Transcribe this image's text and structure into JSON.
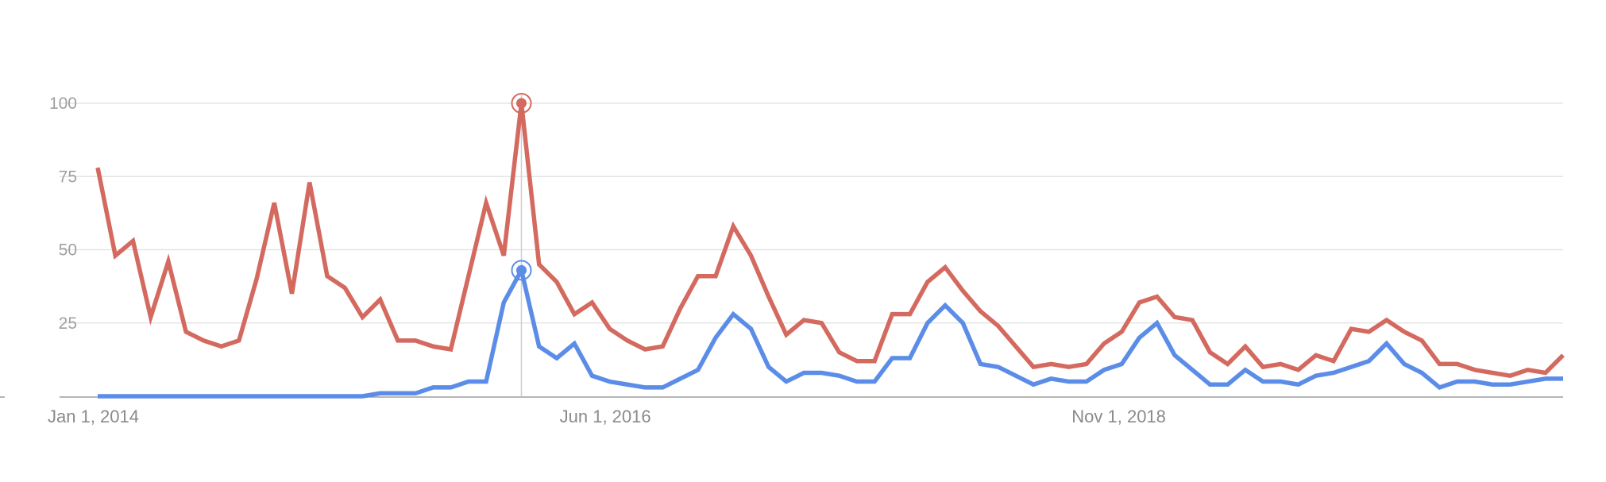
{
  "chart_data": {
    "type": "line",
    "title": "",
    "xlabel": "",
    "ylabel": "",
    "x_ticks": [
      {
        "label": "Jan 1, 2014",
        "index": 0
      },
      {
        "label": "Jun 1, 2016",
        "index": 29
      },
      {
        "label": "Nov 1, 2018",
        "index": 58
      }
    ],
    "y_ticks": [
      25,
      50,
      75,
      100
    ],
    "ylim": [
      0,
      100
    ],
    "grid": true,
    "legend": "none",
    "highlight_index": 24,
    "series": [
      {
        "color": "#d46a5f",
        "values": [
          78,
          48,
          53,
          27,
          46,
          22,
          19,
          17,
          19,
          40,
          66,
          35,
          73,
          41,
          37,
          27,
          33,
          19,
          19,
          17,
          16,
          41,
          66,
          48,
          100,
          45,
          39,
          28,
          32,
          23,
          19,
          16,
          17,
          30,
          41,
          41,
          58,
          48,
          34,
          21,
          26,
          25,
          15,
          12,
          12,
          28,
          28,
          39,
          44,
          36,
          29,
          24,
          17,
          10,
          11,
          10,
          11,
          18,
          22,
          32,
          34,
          27,
          26,
          15,
          11,
          17,
          10,
          11,
          9,
          14,
          12,
          23,
          22,
          26,
          22,
          19,
          11,
          11,
          9,
          8,
          7,
          9,
          8,
          14
        ]
      },
      {
        "color": "#5b8de8",
        "values": [
          0,
          0,
          0,
          0,
          0,
          0,
          0,
          0,
          0,
          0,
          0,
          0,
          0,
          0,
          0,
          0,
          1,
          1,
          1,
          3,
          3,
          5,
          5,
          32,
          43,
          17,
          13,
          18,
          7,
          5,
          4,
          3,
          3,
          6,
          9,
          20,
          28,
          23,
          10,
          5,
          8,
          8,
          7,
          5,
          5,
          13,
          13,
          25,
          31,
          25,
          11,
          10,
          7,
          4,
          6,
          5,
          5,
          9,
          11,
          20,
          25,
          14,
          9,
          4,
          4,
          9,
          5,
          5,
          4,
          7,
          8,
          10,
          12,
          18,
          11,
          8,
          3,
          5,
          5,
          4,
          4,
          5,
          6,
          6
        ]
      }
    ]
  }
}
